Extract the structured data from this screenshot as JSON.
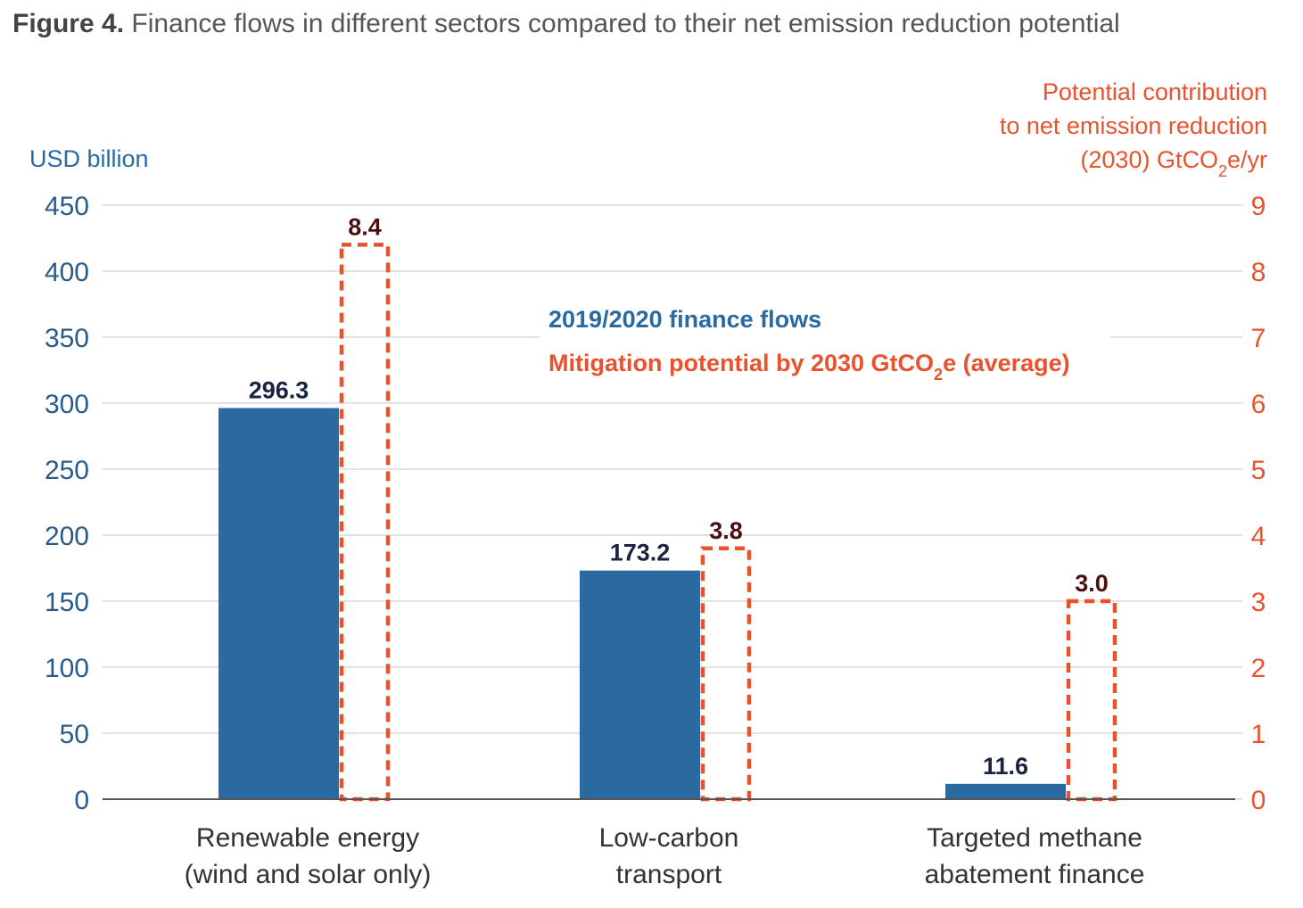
{
  "caption": {
    "label": "Figure 4.",
    "text": " Finance flows in different sectors compared to their net emission reduction potential"
  },
  "colors": {
    "finance_bar": "#2a6aa0",
    "mitigation_bar": "#e8532e",
    "left_axis": "#2a5a8a",
    "right_axis": "#e8532e",
    "gridline": "#d9d9d9"
  },
  "chart_data": {
    "type": "bar",
    "categories": [
      [
        "Renewable energy",
        "(wind and solar only)"
      ],
      [
        "Low-carbon",
        "transport"
      ],
      [
        "Targeted methane",
        "abatement finance"
      ]
    ],
    "series": [
      {
        "name": "2019/2020 finance flows",
        "axis": "left",
        "style": "solid",
        "values": [
          296.3,
          173.2,
          11.6
        ],
        "labels": [
          "296.3",
          "173.2",
          "11.6"
        ]
      },
      {
        "name": "Mitigation potential by 2030 GtCO₂e (average)",
        "axis": "right",
        "style": "dashed-outline",
        "values": [
          8.4,
          3.8,
          3.0
        ],
        "labels": [
          "8.4",
          "3.8",
          "3.0"
        ]
      }
    ],
    "y_left": {
      "label": "USD billion",
      "ylim": [
        0,
        450
      ],
      "ticks": [
        0,
        50,
        100,
        150,
        200,
        250,
        300,
        350,
        400,
        450
      ]
    },
    "y_right": {
      "label_lines": [
        "Potential contribution",
        "to net emission reduction",
        "(2030) GtCO₂e/yr"
      ],
      "ylim": [
        0,
        9
      ],
      "ticks": [
        0,
        1,
        2,
        3,
        4,
        5,
        6,
        7,
        8,
        9
      ]
    },
    "grid": true,
    "legend_position": "top-center"
  }
}
